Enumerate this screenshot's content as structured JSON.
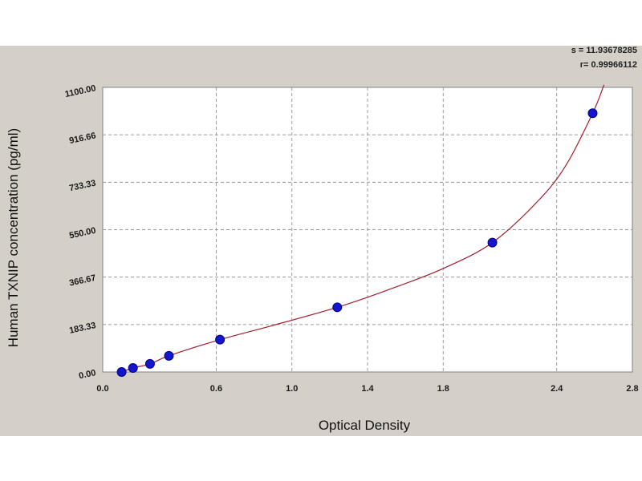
{
  "stats": {
    "s_text": "s = 11.93678285",
    "r_text": "r= 0.99966112"
  },
  "chart_data": {
    "type": "scatter",
    "xlabel": "Optical Density",
    "ylabel": "Human  TXNIP concentration (pg/ml)",
    "xlim": [
      0,
      2.8
    ],
    "ylim": [
      0,
      1100
    ],
    "x_ticks": [
      0.0,
      0.6,
      1.0,
      1.4,
      1.8,
      2.4,
      2.8
    ],
    "x_tick_labels": [
      "0.0",
      "0.6",
      "1.0",
      "1.4",
      "1.8",
      "2.4",
      "2.8"
    ],
    "y_ticks": [
      0,
      183.33,
      366.67,
      550,
      733.33,
      916.66,
      1100
    ],
    "y_tick_labels": [
      "0.00",
      "183.33",
      "366.67",
      "550.00",
      "733.33",
      "916.66",
      "1100.00"
    ],
    "grid": true,
    "series": [
      {
        "points": [
          {
            "x": 0.1,
            "y": 0
          },
          {
            "x": 0.16,
            "y": 15.6
          },
          {
            "x": 0.25,
            "y": 31.25
          },
          {
            "x": 0.35,
            "y": 62.5
          },
          {
            "x": 0.62,
            "y": 125
          },
          {
            "x": 1.24,
            "y": 250
          },
          {
            "x": 2.06,
            "y": 500
          },
          {
            "x": 2.59,
            "y": 1000
          }
        ]
      }
    ],
    "fit_curve": [
      {
        "x": 0.1,
        "y": 0
      },
      {
        "x": 0.16,
        "y": 15.6
      },
      {
        "x": 0.25,
        "y": 31.25
      },
      {
        "x": 0.35,
        "y": 62.5
      },
      {
        "x": 0.62,
        "y": 125
      },
      {
        "x": 0.9,
        "y": 180
      },
      {
        "x": 1.24,
        "y": 250
      },
      {
        "x": 1.5,
        "y": 315
      },
      {
        "x": 1.8,
        "y": 400
      },
      {
        "x": 2.06,
        "y": 500
      },
      {
        "x": 2.3,
        "y": 660
      },
      {
        "x": 2.45,
        "y": 800
      },
      {
        "x": 2.59,
        "y": 1000
      },
      {
        "x": 2.65,
        "y": 1110
      }
    ],
    "colors": {
      "plot_bg": "#ffffff",
      "frame_bg": "#d4d0c8",
      "curve": "#a0202a",
      "point_fill": "#1515d0",
      "point_stroke": "#000080",
      "grid": "#9a9a9a"
    }
  }
}
